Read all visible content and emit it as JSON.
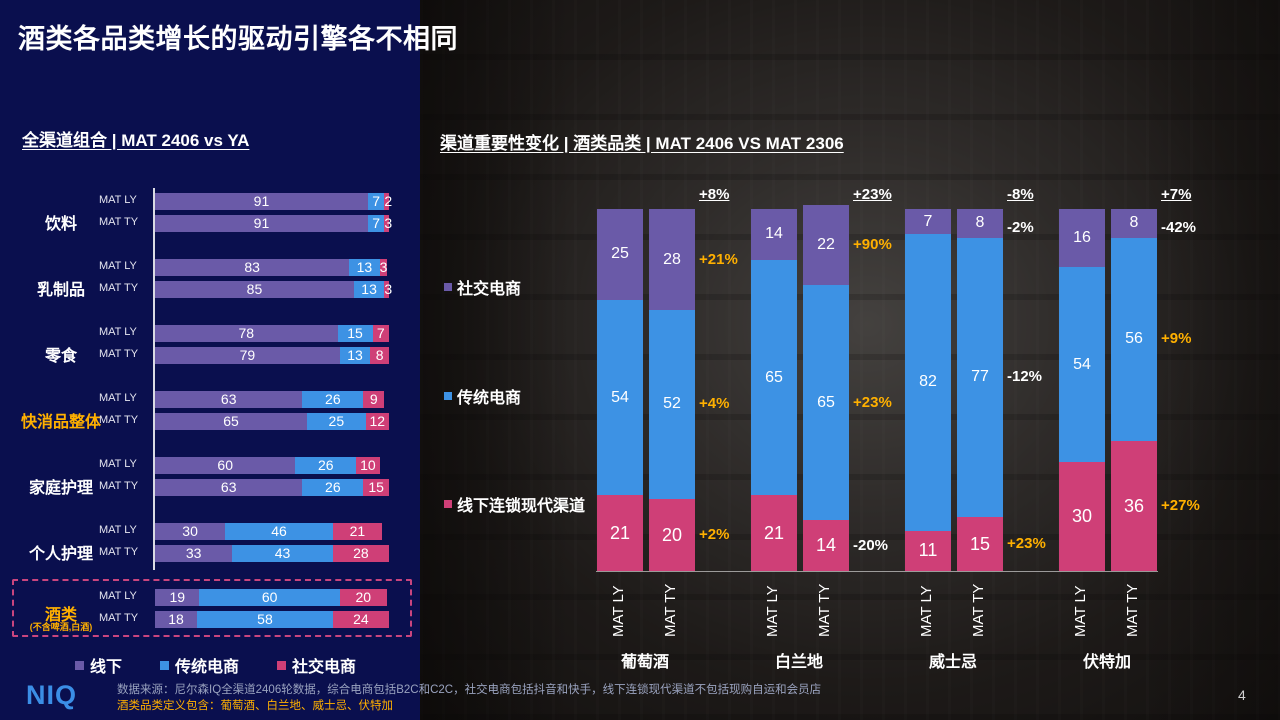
{
  "title": "酒类各品类增长的驱动引擎各不相同",
  "colors": {
    "offline": "#6a5aa8",
    "trad": "#3d92e4",
    "social": "#cf3f77",
    "accent": "#ffb000",
    "leftBg": "#0a0f4e"
  },
  "left_chart": {
    "title": "全渠道组合 | MAT 2406 vs YA",
    "legend": [
      "线下",
      "传统电商",
      "社交电商"
    ]
  },
  "right_chart": {
    "title": "渠道重要性变化 | 酒类品类 | MAT 2406 VS MAT 2306",
    "series_labels": [
      "社交电商",
      "传统电商",
      "线下连锁现代渠道"
    ]
  },
  "chart_data": [
    {
      "type": "bar",
      "orientation": "horizontal-stacked-100",
      "series_names": [
        "线下",
        "传统电商",
        "社交电商"
      ],
      "categories": [
        {
          "name": "饮料",
          "sub": "",
          "highlight": false,
          "rows": [
            {
              "label": "MAT LY",
              "values": [
                91,
                7,
                2
              ]
            },
            {
              "label": "MAT TY",
              "values": [
                91,
                7,
                3
              ]
            }
          ]
        },
        {
          "name": "乳制品",
          "sub": "",
          "highlight": false,
          "rows": [
            {
              "label": "MAT LY",
              "values": [
                83,
                13,
                3
              ]
            },
            {
              "label": "MAT TY",
              "values": [
                85,
                13,
                3
              ]
            }
          ]
        },
        {
          "name": "零食",
          "sub": "",
          "highlight": false,
          "rows": [
            {
              "label": "MAT LY",
              "values": [
                78,
                15,
                7
              ]
            },
            {
              "label": "MAT TY",
              "values": [
                79,
                13,
                8
              ]
            }
          ]
        },
        {
          "name": "快消品整体",
          "sub": "",
          "highlight": true,
          "rows": [
            {
              "label": "MAT LY",
              "values": [
                63,
                26,
                9
              ]
            },
            {
              "label": "MAT TY",
              "values": [
                65,
                25,
                12
              ]
            }
          ]
        },
        {
          "name": "家庭护理",
          "sub": "",
          "highlight": false,
          "rows": [
            {
              "label": "MAT LY",
              "values": [
                60,
                26,
                10
              ]
            },
            {
              "label": "MAT TY",
              "values": [
                63,
                26,
                15
              ]
            }
          ]
        },
        {
          "name": "个人护理",
          "sub": "",
          "highlight": false,
          "rows": [
            {
              "label": "MAT LY",
              "values": [
                30,
                46,
                21
              ]
            },
            {
              "label": "MAT TY",
              "values": [
                33,
                43,
                28
              ]
            }
          ]
        },
        {
          "name": "酒类",
          "sub": "(不含啤酒,白酒)",
          "highlight": true,
          "rows": [
            {
              "label": "MAT LY",
              "values": [
                19,
                60,
                20
              ]
            },
            {
              "label": "MAT TY",
              "values": [
                18,
                58,
                24
              ]
            }
          ]
        }
      ]
    },
    {
      "type": "bar",
      "orientation": "vertical-stacked-100",
      "series_names": [
        "线下连锁现代渠道",
        "传统电商",
        "社交电商"
      ],
      "groups": [
        {
          "name": "葡萄酒",
          "total_change": "+8%",
          "bars": [
            {
              "label": "MAT LY",
              "values": [
                21,
                54,
                25
              ]
            },
            {
              "label": "MAT TY",
              "values": [
                20,
                52,
                28
              ]
            }
          ],
          "deltas": [
            "+2%",
            "+4%",
            "+21%"
          ]
        },
        {
          "name": "白兰地",
          "total_change": "+23%",
          "bars": [
            {
              "label": "MAT LY",
              "values": [
                21,
                65,
                14
              ]
            },
            {
              "label": "MAT TY",
              "values": [
                14,
                65,
                22
              ]
            }
          ],
          "deltas": [
            "-20%",
            "+23%",
            "+90%"
          ]
        },
        {
          "name": "威士忌",
          "total_change": "-8%",
          "bars": [
            {
              "label": "MAT LY",
              "values": [
                11,
                82,
                7
              ]
            },
            {
              "label": "MAT TY",
              "values": [
                15,
                77,
                8
              ]
            }
          ],
          "deltas": [
            "+23%",
            "-12%",
            "-2%"
          ]
        },
        {
          "name": "伏特加",
          "total_change": "+7%",
          "bars": [
            {
              "label": "MAT LY",
              "values": [
                30,
                54,
                16
              ]
            },
            {
              "label": "MAT TY",
              "values": [
                36,
                56,
                8
              ]
            }
          ],
          "deltas": [
            "+27%",
            "+9%",
            "-42%"
          ]
        }
      ]
    }
  ],
  "footer": {
    "logo": "NIQ",
    "source": "数据来源：尼尔森IQ全渠道2406轮数据，综合电商包括B2C和C2C，社交电商包括抖音和快手，线下连锁现代渠道不包括现购自运和会员店",
    "definition": "酒类品类定义包含：葡萄酒、白兰地、威士忌、伏特加",
    "page": "4"
  }
}
